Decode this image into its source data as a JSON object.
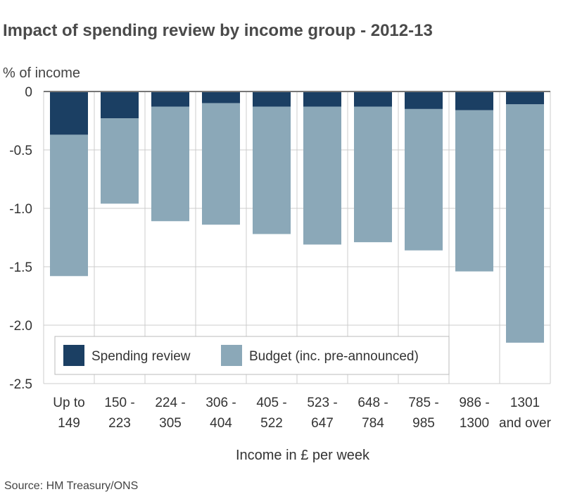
{
  "chart_data": {
    "type": "bar",
    "stacked": true,
    "title": "Impact of spending review by income group - 2012-13",
    "ylabel": "% of income",
    "xlabel": "Income in £ per week",
    "source": "Source: HM Treasury/ONS",
    "ylim": [
      -2.5,
      0
    ],
    "yticks": [
      0,
      -0.5,
      -1.0,
      -1.5,
      -2.0,
      -2.5
    ],
    "ytick_labels": [
      "0",
      "-0.5",
      "-1.0",
      "-1.5",
      "-2.0",
      "-2.5"
    ],
    "categories": [
      [
        "Up to",
        "149"
      ],
      [
        "150 -",
        "223"
      ],
      [
        "224 -",
        "305"
      ],
      [
        "306 -",
        "404"
      ],
      [
        "405 -",
        "522"
      ],
      [
        "523 -",
        "647"
      ],
      [
        "648 -",
        "784"
      ],
      [
        "785 -",
        "985"
      ],
      [
        "986 -",
        "1300"
      ],
      [
        "1301",
        "and over"
      ]
    ],
    "series": [
      {
        "name": "Spending review",
        "color": "#1b3f63",
        "values": [
          -0.37,
          -0.23,
          -0.13,
          -0.1,
          -0.13,
          -0.13,
          -0.13,
          -0.15,
          -0.16,
          -0.11
        ]
      },
      {
        "name": "Budget (inc. pre-announced)",
        "color": "#8ba8b8",
        "values": [
          -1.21,
          -0.73,
          -0.98,
          -1.04,
          -1.09,
          -1.18,
          -1.16,
          -1.21,
          -1.38,
          -2.04
        ]
      }
    ],
    "grid": true,
    "legend": "bottom-left"
  }
}
